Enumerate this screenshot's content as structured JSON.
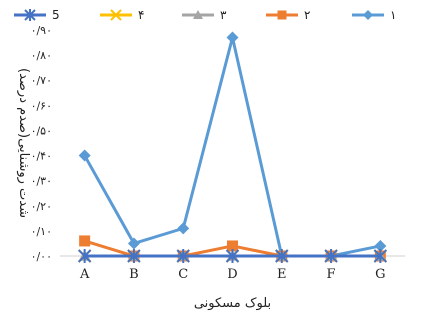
{
  "chart_data": {
    "type": "line",
    "title": "",
    "xlabel": "بلوک مسکونی",
    "ylabel": "شدت روشنایی(صدم درصد)",
    "categories": [
      "A",
      "B",
      "C",
      "D",
      "E",
      "F",
      "G"
    ],
    "yticks": [
      "۰/۰۰",
      "۰/۱۰",
      "۰/۲۰",
      "۰/۳۰",
      "۰/۴۰",
      "۰/۵۰",
      "۰/۶۰",
      "۰/۷۰",
      "۰/۸۰",
      "۰/۹۰"
    ],
    "ylim": [
      0,
      0.9
    ],
    "grid": false,
    "legend_position": "top",
    "series": [
      {
        "name": "۱",
        "color": "#5B9BD5",
        "marker": "diamond",
        "values": [
          0.4,
          0.05,
          0.11,
          0.87,
          0.0,
          0.0,
          0.04
        ]
      },
      {
        "name": "۲",
        "color": "#ED7D31",
        "marker": "square",
        "values": [
          0.06,
          0.0,
          0.0,
          0.04,
          0.0,
          0.0,
          0.0
        ]
      },
      {
        "name": "۳",
        "color": "#A5A5A5",
        "marker": "triangle",
        "values": [
          0.0,
          0.0,
          0.0,
          0.0,
          0.0,
          0.0,
          0.0
        ]
      },
      {
        "name": "۴",
        "color": "#FFC000",
        "marker": "x",
        "values": [
          0.0,
          0.0,
          0.0,
          0.0,
          0.0,
          0.0,
          0.0
        ]
      },
      {
        "name": "5",
        "color": "#4472C4",
        "marker": "star",
        "values": [
          0.0,
          0.0,
          0.0,
          0.0,
          0.0,
          0.0,
          0.0
        ]
      }
    ]
  }
}
